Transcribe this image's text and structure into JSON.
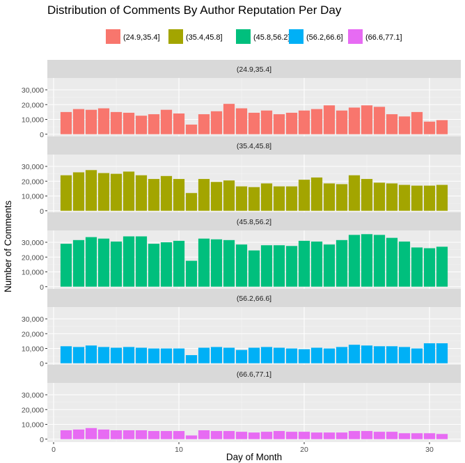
{
  "chart_data": {
    "type": "bar",
    "title": "Distribution of Comments By Author Reputation Per Day",
    "xlabel": "Day of Month",
    "ylabel": "Number of Comments",
    "legend_position": "top",
    "xlim": [
      -0.5,
      32.5
    ],
    "ylim": [
      -2000,
      38000
    ],
    "x_ticks": [
      0,
      10,
      20,
      30
    ],
    "y_ticks": [
      0,
      10000,
      20000,
      30000
    ],
    "y_tick_labels": [
      "0",
      "10,000",
      "20,000",
      "30,000"
    ],
    "grid": true,
    "x": [
      1,
      2,
      3,
      4,
      5,
      6,
      7,
      8,
      9,
      10,
      11,
      12,
      13,
      14,
      15,
      16,
      17,
      18,
      19,
      20,
      21,
      22,
      23,
      24,
      25,
      26,
      27,
      28,
      29,
      30,
      31
    ],
    "series": [
      {
        "name": "(24.9,35.4]",
        "color": "#F8766D",
        "values": [
          15000,
          17000,
          16500,
          17500,
          15000,
          14500,
          12500,
          13500,
          16500,
          14000,
          6500,
          13500,
          15500,
          20500,
          17500,
          14500,
          16000,
          13500,
          14500,
          16000,
          17000,
          19500,
          16000,
          18000,
          19500,
          18500,
          13500,
          12000,
          15000,
          8500,
          9500
        ]
      },
      {
        "name": "(35.4,45.8]",
        "color": "#A3A500",
        "values": [
          24000,
          26000,
          27500,
          25500,
          25000,
          26500,
          24000,
          21500,
          23500,
          21500,
          12000,
          21500,
          19500,
          20500,
          16500,
          16000,
          18500,
          16500,
          16500,
          21000,
          22500,
          18500,
          18000,
          24000,
          21500,
          19000,
          18500,
          17500,
          17000,
          17000,
          17500
        ]
      },
      {
        "name": "(45.8,56.2]",
        "color": "#00BF7D",
        "values": [
          29000,
          31500,
          33500,
          32500,
          30500,
          34000,
          34000,
          29000,
          30000,
          31000,
          17500,
          32500,
          32000,
          31500,
          28500,
          24500,
          28000,
          28000,
          27500,
          31000,
          30500,
          28500,
          31500,
          35000,
          35500,
          35000,
          33000,
          30500,
          26500,
          26000,
          27000
        ]
      },
      {
        "name": "(56.2,66.6]",
        "color": "#00B0F6",
        "values": [
          11500,
          11000,
          12000,
          11000,
          10500,
          11000,
          10500,
          10000,
          10000,
          10000,
          5500,
          10500,
          11000,
          10500,
          9000,
          10500,
          11000,
          10500,
          10000,
          9500,
          10500,
          10000,
          11000,
          12500,
          12000,
          11500,
          11500,
          11000,
          10000,
          13500,
          13500
        ]
      },
      {
        "name": "(66.6,77.1]",
        "color": "#E76BF3",
        "values": [
          6000,
          6500,
          7500,
          6500,
          6000,
          6000,
          6000,
          5500,
          5500,
          5500,
          2500,
          6000,
          5500,
          5500,
          5000,
          4500,
          5000,
          5500,
          5000,
          5000,
          4500,
          4500,
          4500,
          5500,
          5500,
          5000,
          5000,
          4000,
          4000,
          4000,
          3500
        ]
      }
    ]
  }
}
